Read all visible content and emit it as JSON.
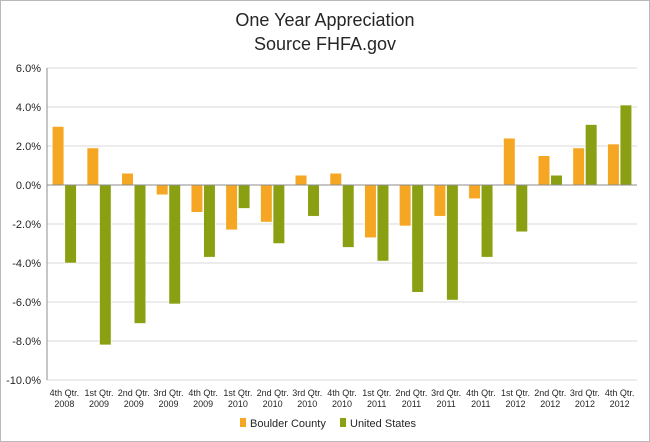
{
  "chart_data": {
    "type": "bar",
    "title": "One Year Appreciation",
    "subtitle": "Source FHFA.gov",
    "categories": [
      [
        "4th Qtr.",
        "2008"
      ],
      [
        "1st Qtr.",
        "2009"
      ],
      [
        "2nd Qtr.",
        "2009"
      ],
      [
        "3rd Qtr.",
        "2009"
      ],
      [
        "4th Qtr.",
        "2009"
      ],
      [
        "1st Qtr.",
        "2010"
      ],
      [
        "2nd Qtr.",
        "2010"
      ],
      [
        "3rd Qtr.",
        "2010"
      ],
      [
        "4th Qtr.",
        "2010"
      ],
      [
        "1st Qtr.",
        "2011"
      ],
      [
        "2nd Qtr.",
        "2011"
      ],
      [
        "3rd Qtr.",
        "2011"
      ],
      [
        "4th Qtr.",
        "2011"
      ],
      [
        "1st Qtr.",
        "2012"
      ],
      [
        "2nd Qtr.",
        "2012"
      ],
      [
        "3rd Qtr.",
        "2012"
      ],
      [
        "4th Qtr.",
        "2012"
      ]
    ],
    "series": [
      {
        "name": "Boulder County",
        "color": "#f5a623",
        "values": [
          3.0,
          1.9,
          0.6,
          -0.5,
          -1.4,
          -2.3,
          -1.9,
          0.5,
          0.6,
          -2.7,
          -2.1,
          -1.6,
          -0.7,
          2.4,
          1.5,
          1.9,
          2.1
        ]
      },
      {
        "name": "United States",
        "color": "#8aa012",
        "values": [
          -4.0,
          -8.2,
          -7.1,
          -6.1,
          -3.7,
          -1.2,
          -3.0,
          -1.6,
          -3.2,
          -3.9,
          -5.5,
          -5.9,
          -3.7,
          -2.4,
          0.5,
          3.1,
          4.1
        ]
      }
    ],
    "ylim": [
      -10,
      6
    ],
    "yticks": [
      "-10.0%",
      "-8.0%",
      "-6.0%",
      "-4.0%",
      "-2.0%",
      "0.0%",
      "2.0%",
      "4.0%",
      "6.0%"
    ],
    "ytick_values": [
      -10,
      -8,
      -6,
      -4,
      -2,
      0,
      2,
      4,
      6
    ],
    "grid": true,
    "legend_position": "bottom"
  }
}
